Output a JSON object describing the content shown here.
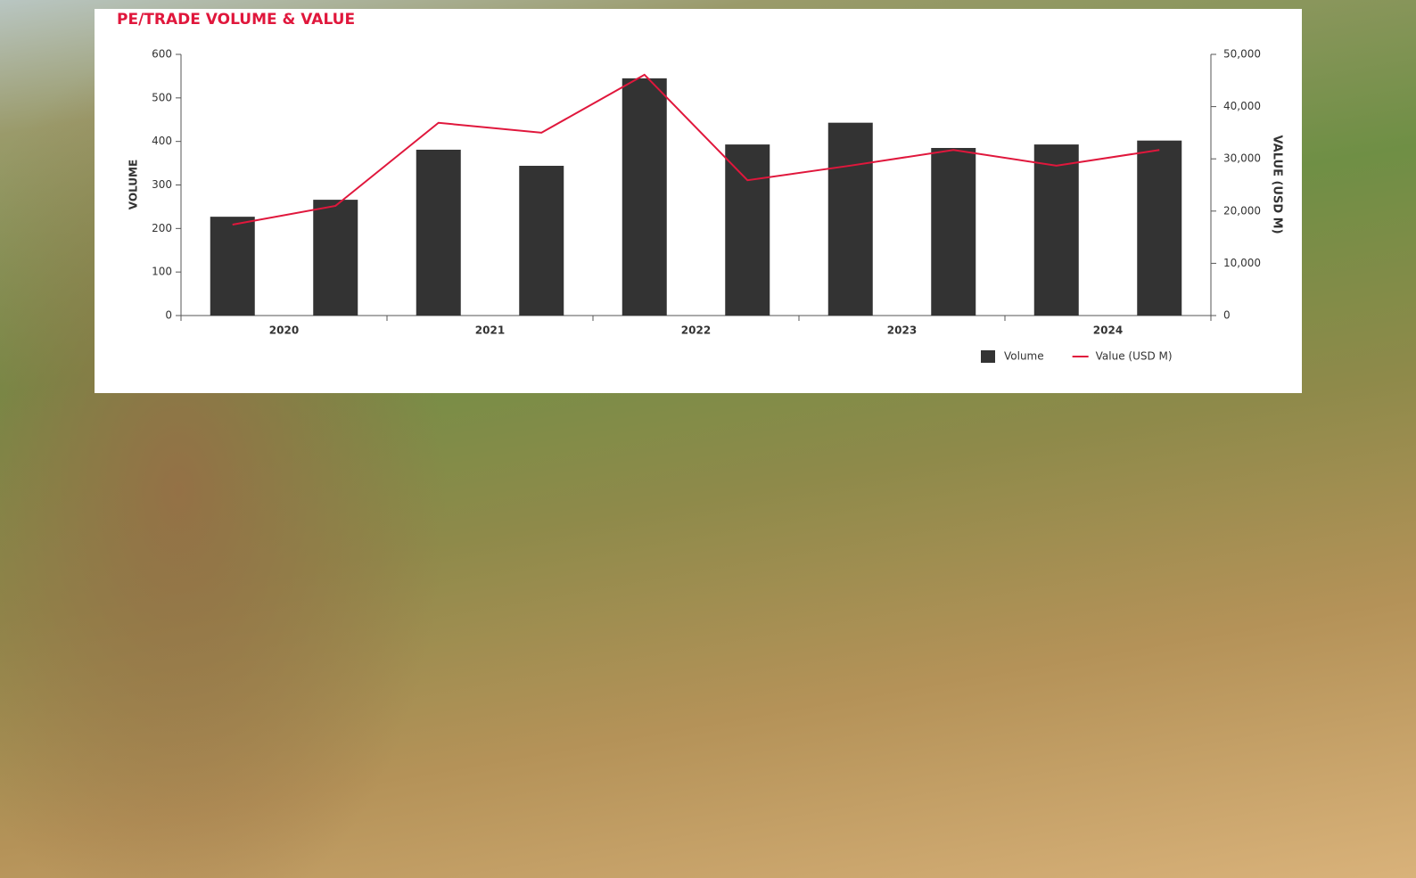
{
  "chart_data": {
    "type": "bar-line",
    "title": "PE/TRADE VOLUME & VALUE",
    "y_label": "VOLUME",
    "y2_label": "VALUE (USD M)",
    "categories": [
      null,
      null,
      null,
      null,
      null,
      null,
      null,
      null,
      null,
      null
    ],
    "category_groups": [
      "2020",
      "2021",
      "2022",
      "2023",
      "2024"
    ],
    "series": [
      {
        "name": "Volume",
        "type": "bar",
        "color": "#333333",
        "values": [
          227,
          266,
          381,
          344,
          545,
          393,
          443,
          385,
          393,
          402
        ]
      },
      {
        "name": "Value (USD M)",
        "type": "line",
        "axis": "y2",
        "color": "#e0173c",
        "values": [
          17400,
          21000,
          36900,
          35000,
          46100,
          25900,
          28700,
          31700,
          28700,
          31700
        ]
      }
    ],
    "ylim": [
      0,
      600
    ],
    "yticks": [
      0,
      100,
      200,
      300,
      400,
      500,
      600
    ],
    "y2lim": [
      0,
      50000
    ],
    "y2ticks": [
      0,
      {
        "value": 10000,
        "label": "10,000"
      },
      {
        "value": 20000,
        "label": "20,000"
      },
      {
        "value": 30000,
        "label": "30,000"
      },
      {
        "value": 40000,
        "label": "40,000"
      },
      {
        "value": 50000,
        "label": "50,000"
      }
    ],
    "grid": false,
    "legend": "bottom-right"
  }
}
